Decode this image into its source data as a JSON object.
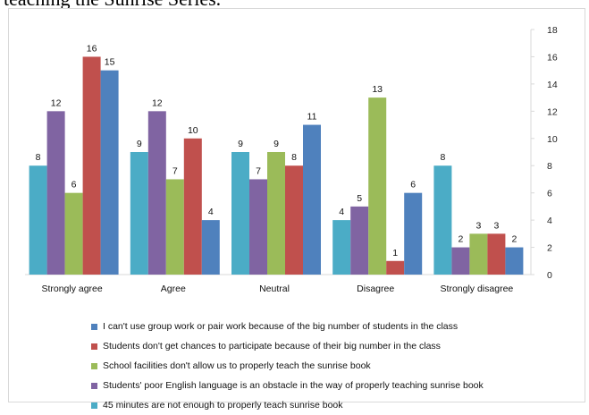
{
  "caption_fragment": "teaching the Sunrise Series.",
  "chart_data": {
    "type": "bar",
    "categories": [
      "Strongly agree",
      "Agree",
      "Neutral",
      "Disagree",
      "Strongly disagree"
    ],
    "ylim": [
      0,
      18
    ],
    "yticks": [
      0,
      2,
      4,
      6,
      8,
      10,
      12,
      14,
      16,
      18
    ],
    "grid": false,
    "legend_position": "bottom",
    "series": [
      {
        "name": "45 minutes are not enough to properly teach sunrise book",
        "color": "#4BACC6",
        "values": [
          8,
          9,
          9,
          4,
          8
        ]
      },
      {
        "name": "Students' poor English language is an obstacle in the way of properly teaching sunrise book",
        "color": "#8064A2",
        "values": [
          12,
          12,
          7,
          5,
          2
        ]
      },
      {
        "name": "School facilities don't allow us to properly teach  the  sunrise book",
        "color": "#9BBB59",
        "values": [
          6,
          7,
          9,
          13,
          3
        ]
      },
      {
        "name": "Students don't get chances to participate because of their big number  in the class",
        "color": "#C0504D",
        "values": [
          16,
          10,
          8,
          1,
          3
        ]
      },
      {
        "name": "I can't use group work or pair work because of the big number of students in the class",
        "color": "#4F81BD",
        "values": [
          15,
          4,
          11,
          6,
          2
        ]
      }
    ],
    "legend_order": [
      4,
      3,
      2,
      1,
      0
    ]
  }
}
